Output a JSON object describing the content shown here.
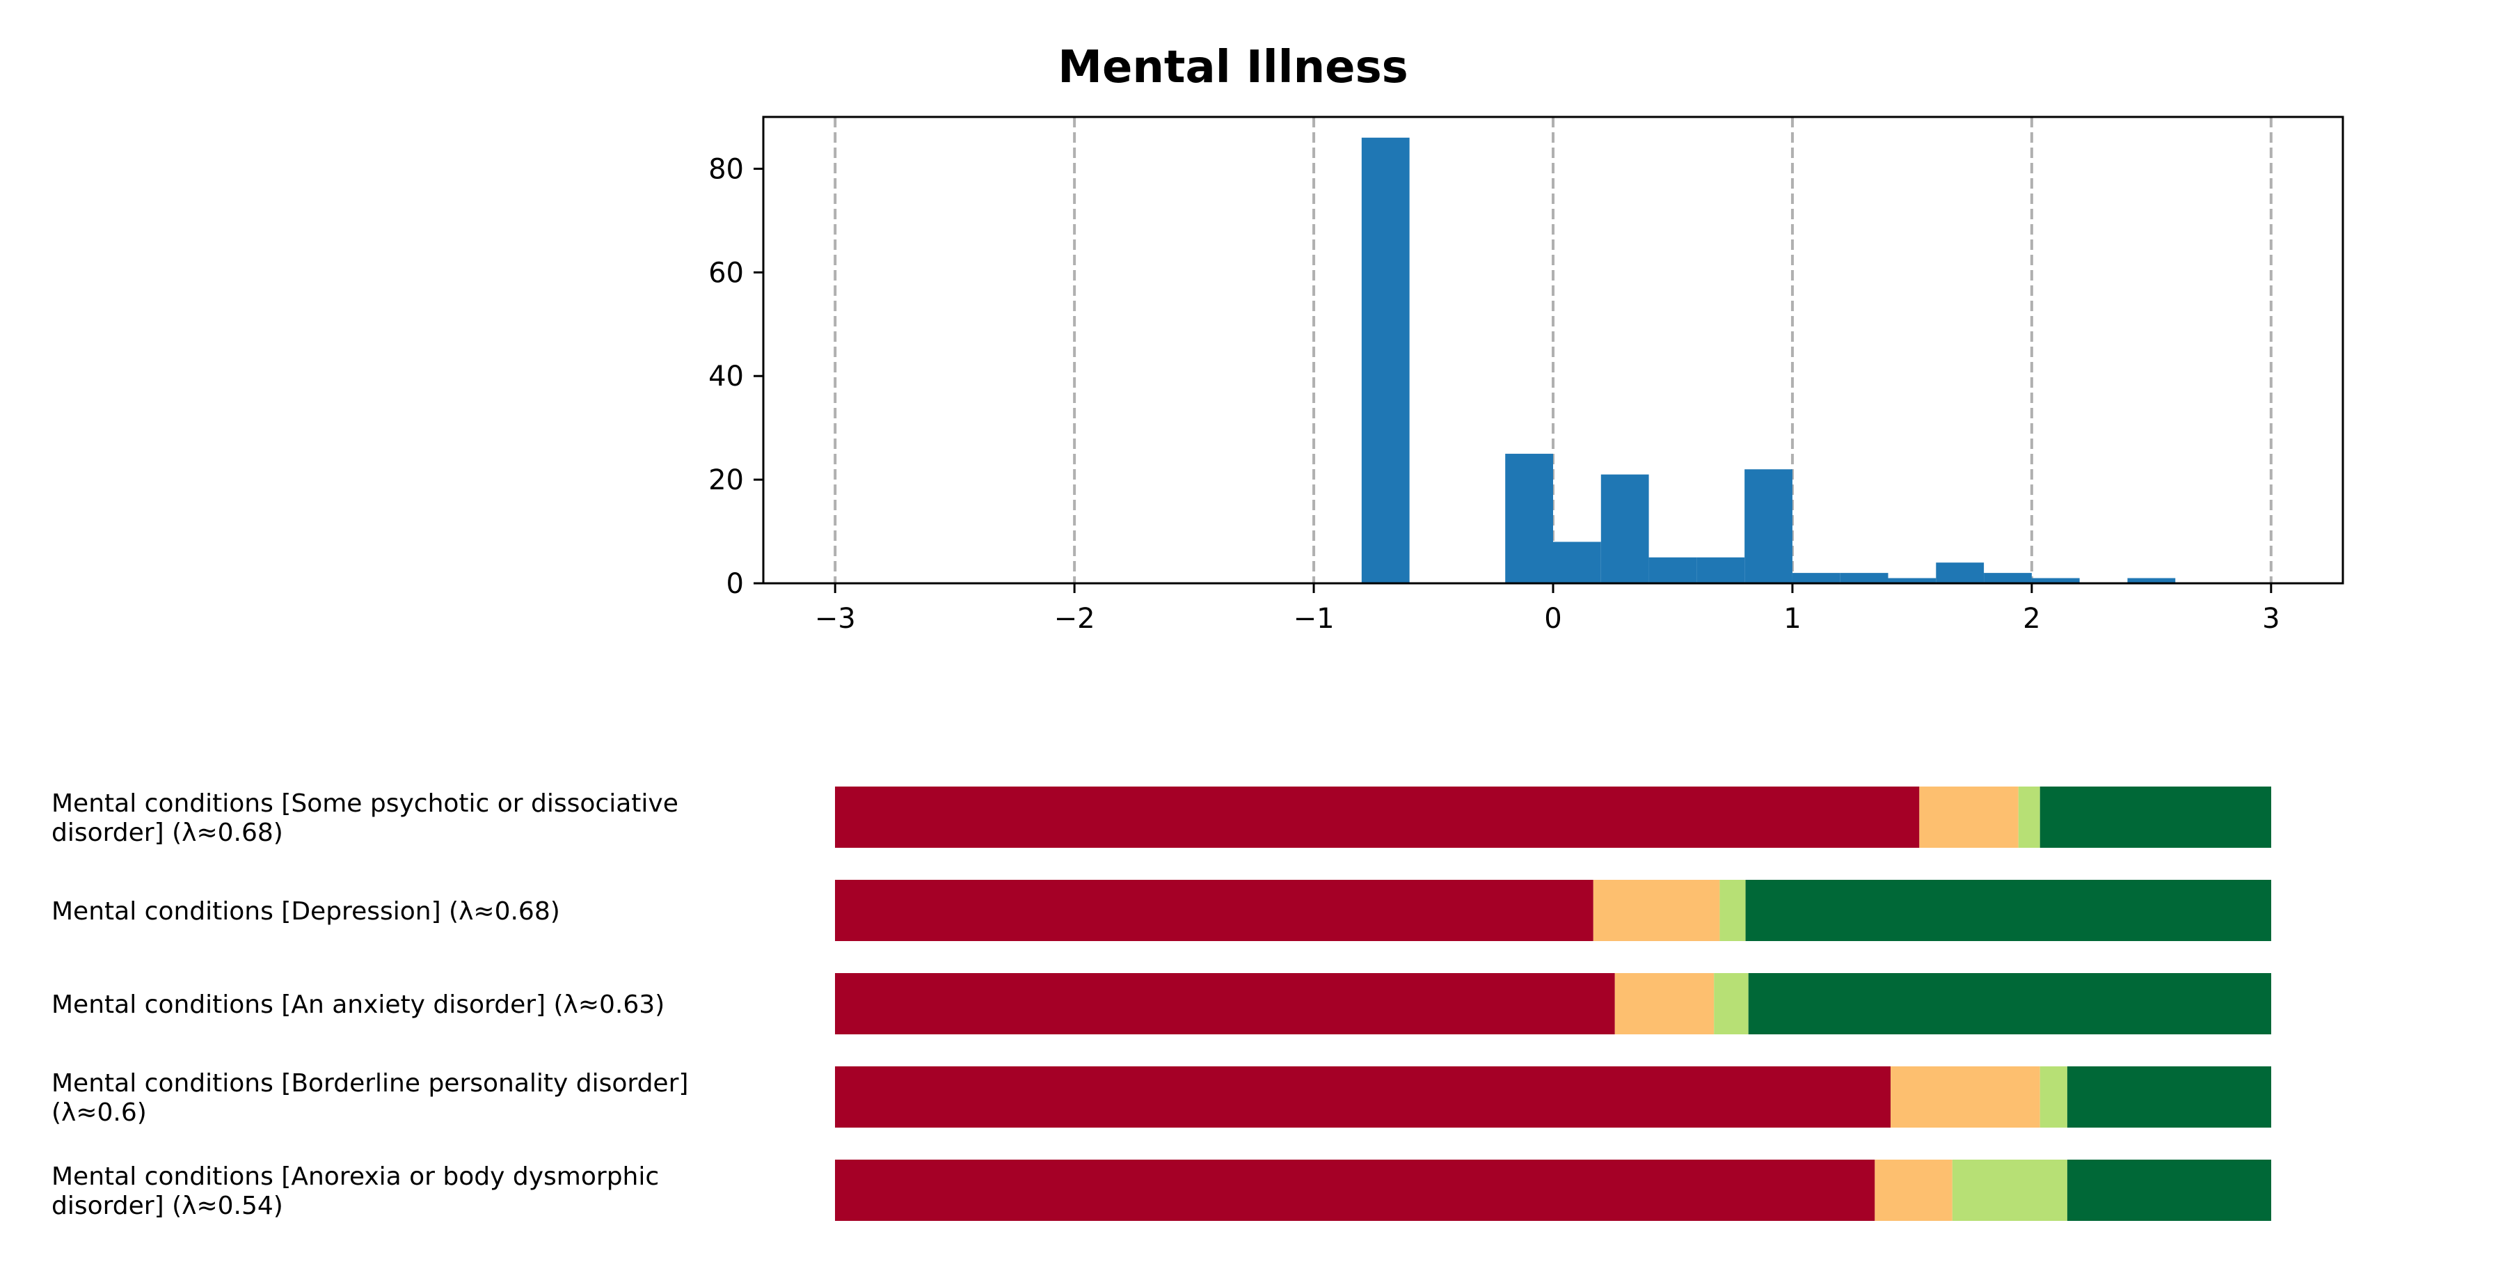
{
  "chart_data": [
    {
      "type": "bar",
      "subtype": "histogram",
      "title": "Mental Illness",
      "xlabel": "",
      "ylabel": "",
      "xlim": [
        -3.3,
        3.3
      ],
      "ylim": [
        0,
        90
      ],
      "xticks": [
        -3,
        -2,
        -1,
        0,
        1,
        2,
        3
      ],
      "xtick_labels": [
        "−3",
        "−2",
        "−1",
        "0",
        "1",
        "2",
        "3"
      ],
      "yticks": [
        0,
        20,
        40,
        60,
        80
      ],
      "ytick_labels": [
        "0",
        "20",
        "40",
        "60",
        "80"
      ],
      "grid": "vertical dashed at x ticks",
      "bar_color": "#1f77b4",
      "grid_color": "#b0b0b0",
      "bins": [
        {
          "x0": -0.8,
          "x1": -0.6,
          "count": 86
        },
        {
          "x0": -0.2,
          "x1": 0.0,
          "count": 25
        },
        {
          "x0": 0.0,
          "x1": 0.2,
          "count": 8
        },
        {
          "x0": 0.2,
          "x1": 0.4,
          "count": 21
        },
        {
          "x0": 0.4,
          "x1": 0.6,
          "count": 5
        },
        {
          "x0": 0.6,
          "x1": 0.8,
          "count": 5
        },
        {
          "x0": 0.8,
          "x1": 1.0,
          "count": 22
        },
        {
          "x0": 1.0,
          "x1": 1.2,
          "count": 2
        },
        {
          "x0": 1.2,
          "x1": 1.4,
          "count": 2
        },
        {
          "x0": 1.4,
          "x1": 1.6,
          "count": 1
        },
        {
          "x0": 1.6,
          "x1": 1.8,
          "count": 4
        },
        {
          "x0": 1.8,
          "x1": 2.0,
          "count": 2
        },
        {
          "x0": 2.0,
          "x1": 2.2,
          "count": 1
        },
        {
          "x0": 2.4,
          "x1": 2.6,
          "count": 1
        }
      ]
    },
    {
      "type": "bar",
      "subtype": "stacked-horizontal-100pct",
      "title": "",
      "xlim": [
        0,
        1
      ],
      "category_colors": [
        "#a50026",
        "#fdbf6f",
        "#b7e075",
        "#006837"
      ],
      "categories": [
        {
          "label_lines": [
            "Mental conditions [Some psychotic or dissociative",
            "disorder] (λ≈0.68)"
          ],
          "values": [
            0.755,
            0.069,
            0.015,
            0.161
          ]
        },
        {
          "label_lines": [
            "Mental conditions [Depression] (λ≈0.68)"
          ],
          "values": [
            0.528,
            0.088,
            0.018,
            0.366
          ]
        },
        {
          "label_lines": [
            "Mental conditions [An anxiety disorder] (λ≈0.63)"
          ],
          "values": [
            0.543,
            0.069,
            0.024,
            0.364
          ]
        },
        {
          "label_lines": [
            "Mental conditions [Borderline personality disorder]",
            "(λ≈0.6)"
          ],
          "values": [
            0.735,
            0.104,
            0.019,
            0.142
          ]
        },
        {
          "label_lines": [
            "Mental conditions [Anorexia or body dysmorphic",
            "disorder] (λ≈0.54)"
          ],
          "values": [
            0.724,
            0.054,
            0.08,
            0.142
          ]
        }
      ]
    }
  ]
}
